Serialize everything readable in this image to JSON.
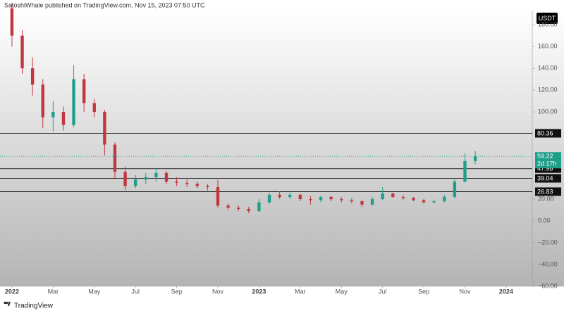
{
  "header": "SatoshiWhale published on TradingView.com, Nov 15, 2023 07:50 UTC",
  "footer": "TradingView",
  "chart_data": {
    "type": "candlestick",
    "currency": "USDT",
    "x": [
      0,
      0.5,
      1,
      1.5,
      2,
      2.5,
      3,
      3.5,
      4,
      4.5,
      5,
      5.5,
      6,
      6.5,
      7,
      7.5,
      8,
      8.5,
      9,
      9.5,
      10,
      10.5,
      11,
      11.5,
      12,
      12.5,
      13,
      13.5,
      14,
      14.5,
      15,
      15.5,
      16,
      16.5,
      17,
      17.5,
      18,
      18.5,
      19,
      19.5,
      20,
      20.5,
      21,
      21.5,
      22,
      22.5
    ],
    "open": [
      195,
      170,
      140,
      125,
      95,
      100,
      88,
      130,
      108,
      100,
      70,
      45,
      32,
      38,
      40,
      44,
      36,
      35,
      34,
      32,
      31,
      14,
      12,
      11,
      9,
      17,
      24,
      22,
      24,
      20,
      19,
      22,
      20,
      19,
      18,
      15,
      20,
      25,
      22,
      21,
      19,
      17,
      18,
      22,
      36,
      55
    ],
    "high": [
      200,
      175,
      150,
      130,
      110,
      105,
      143,
      135,
      112,
      102,
      72,
      50,
      42,
      44,
      48,
      46,
      40,
      38,
      36,
      34,
      38,
      16,
      14,
      13,
      20,
      26,
      27,
      26,
      25,
      23,
      23,
      23,
      22,
      21,
      19,
      22,
      31,
      26,
      24,
      22,
      20,
      19,
      24,
      38,
      62,
      64
    ],
    "low": [
      160,
      135,
      115,
      85,
      82,
      83,
      86,
      100,
      95,
      60,
      38,
      28,
      30,
      34,
      36,
      34,
      32,
      31,
      30,
      28,
      12,
      10,
      9,
      7,
      8,
      16,
      20,
      20,
      18,
      15,
      17,
      18,
      17,
      16,
      13,
      14,
      19,
      21,
      19,
      18,
      16,
      16,
      17,
      21,
      35,
      52
    ],
    "close": [
      170,
      140,
      125,
      95,
      100,
      88,
      130,
      108,
      100,
      70,
      45,
      32,
      38,
      40,
      44,
      36,
      35,
      34,
      32,
      31,
      14,
      12,
      11,
      9,
      17,
      24,
      22,
      24,
      20,
      19,
      22,
      20,
      19,
      18,
      15,
      20,
      25,
      22,
      21,
      19,
      17,
      18,
      22,
      36,
      55,
      59.22
    ],
    "up_color": "#1f9e8a",
    "down_color": "#c2363f",
    "countdown": "2d 17h",
    "levels": [
      80.36,
      47.98,
      39.04,
      26.83
    ],
    "xlim": [
      -0.58,
      25.27
    ],
    "xticks": [
      {
        "value": 0,
        "label": "2022"
      },
      {
        "value": 2,
        "label": "Mar"
      },
      {
        "value": 4,
        "label": "May"
      },
      {
        "value": 6,
        "label": "Jul"
      },
      {
        "value": 8,
        "label": "Sep"
      },
      {
        "value": 10,
        "label": "Nov"
      },
      {
        "value": 12,
        "label": "2023"
      },
      {
        "value": 14,
        "label": "Mar"
      },
      {
        "value": 16,
        "label": "May"
      },
      {
        "value": 18,
        "label": "Jul"
      },
      {
        "value": 20,
        "label": "Sep"
      },
      {
        "value": 22,
        "label": "Nov"
      },
      {
        "value": 24,
        "label": "2024"
      }
    ],
    "ylim": [
      -60,
      193
    ],
    "yticks": [
      {
        "value": -60,
        "label": "−60.00"
      },
      {
        "value": -40,
        "label": "−40.00"
      },
      {
        "value": -20,
        "label": "−20.00"
      },
      {
        "value": 0,
        "label": "0.00"
      },
      {
        "value": 20,
        "label": "20.00"
      },
      {
        "value": 100,
        "label": "100.00"
      },
      {
        "value": 120,
        "label": "120.00"
      },
      {
        "value": 140,
        "label": "140.00"
      },
      {
        "value": 160,
        "label": "160.00"
      },
      {
        "value": 180,
        "label": "180.00"
      }
    ]
  }
}
